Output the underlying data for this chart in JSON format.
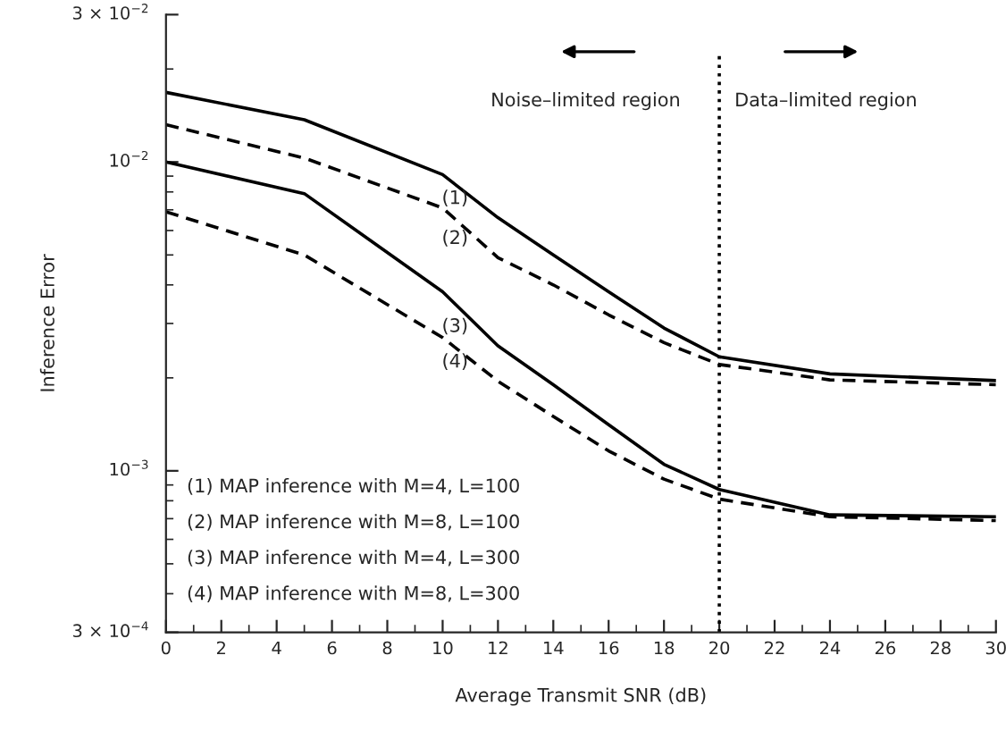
{
  "chart_data": {
    "type": "line",
    "xlabel": "Average Transmit SNR (dB)",
    "ylabel": "Inference Error",
    "x": [
      0,
      5,
      10,
      12,
      14,
      16,
      18,
      20,
      24,
      30
    ],
    "series": [
      {
        "name": "(1)",
        "color": "#000000",
        "line_style": "solid",
        "values": [
          0.0168,
          0.0137,
          0.0091,
          0.0066,
          0.005,
          0.0038,
          0.0029,
          0.00234,
          0.00206,
          0.00196
        ]
      },
      {
        "name": "(2)",
        "color": "#000000",
        "line_style": "dashed",
        "values": [
          0.0132,
          0.0103,
          0.0071,
          0.0049,
          0.004,
          0.0032,
          0.0026,
          0.00221,
          0.00197,
          0.0019
        ]
      },
      {
        "name": "(3)",
        "color": "#000000",
        "line_style": "solid",
        "values": [
          0.01,
          0.0079,
          0.0038,
          0.00254,
          0.0019,
          0.00141,
          0.00105,
          0.00087,
          0.00072,
          0.00071
        ]
      },
      {
        "name": "(4)",
        "color": "#000000",
        "line_style": "dashed",
        "values": [
          0.0069,
          0.005,
          0.0027,
          0.00195,
          0.0015,
          0.00116,
          0.00094,
          0.00081,
          0.00071,
          0.00069
        ]
      }
    ],
    "log": "y",
    "xlim": [
      0,
      30
    ],
    "ylim": [
      0.0003,
      0.03
    ],
    "xticks": [
      0,
      2,
      4,
      6,
      8,
      10,
      12,
      14,
      16,
      18,
      20,
      22,
      24,
      26,
      28,
      30
    ],
    "yticks": [
      {
        "value": 0.0003,
        "label": "3 × 10$^{−4}$"
      },
      {
        "value": 0.001,
        "label": "10$^{−3}$"
      },
      {
        "value": 0.01,
        "label": "10$^{−2}$"
      },
      {
        "value": 0.03,
        "label": "3 × 10$^{−2}$"
      }
    ],
    "ref_lines": [
      {
        "axis": "x",
        "value": 20,
        "color": "#000000",
        "line_style": "dotted"
      }
    ],
    "annotations": [
      "Noise–limited region",
      "Data–limited region",
      "(1) MAP inference with M=4, L=100",
      "(2) MAP inference with M=8, L=100",
      "(3) MAP inference with M=4, L=300",
      "(4) MAP inference with M=8, L=300"
    ],
    "grid": false,
    "legend": false
  }
}
